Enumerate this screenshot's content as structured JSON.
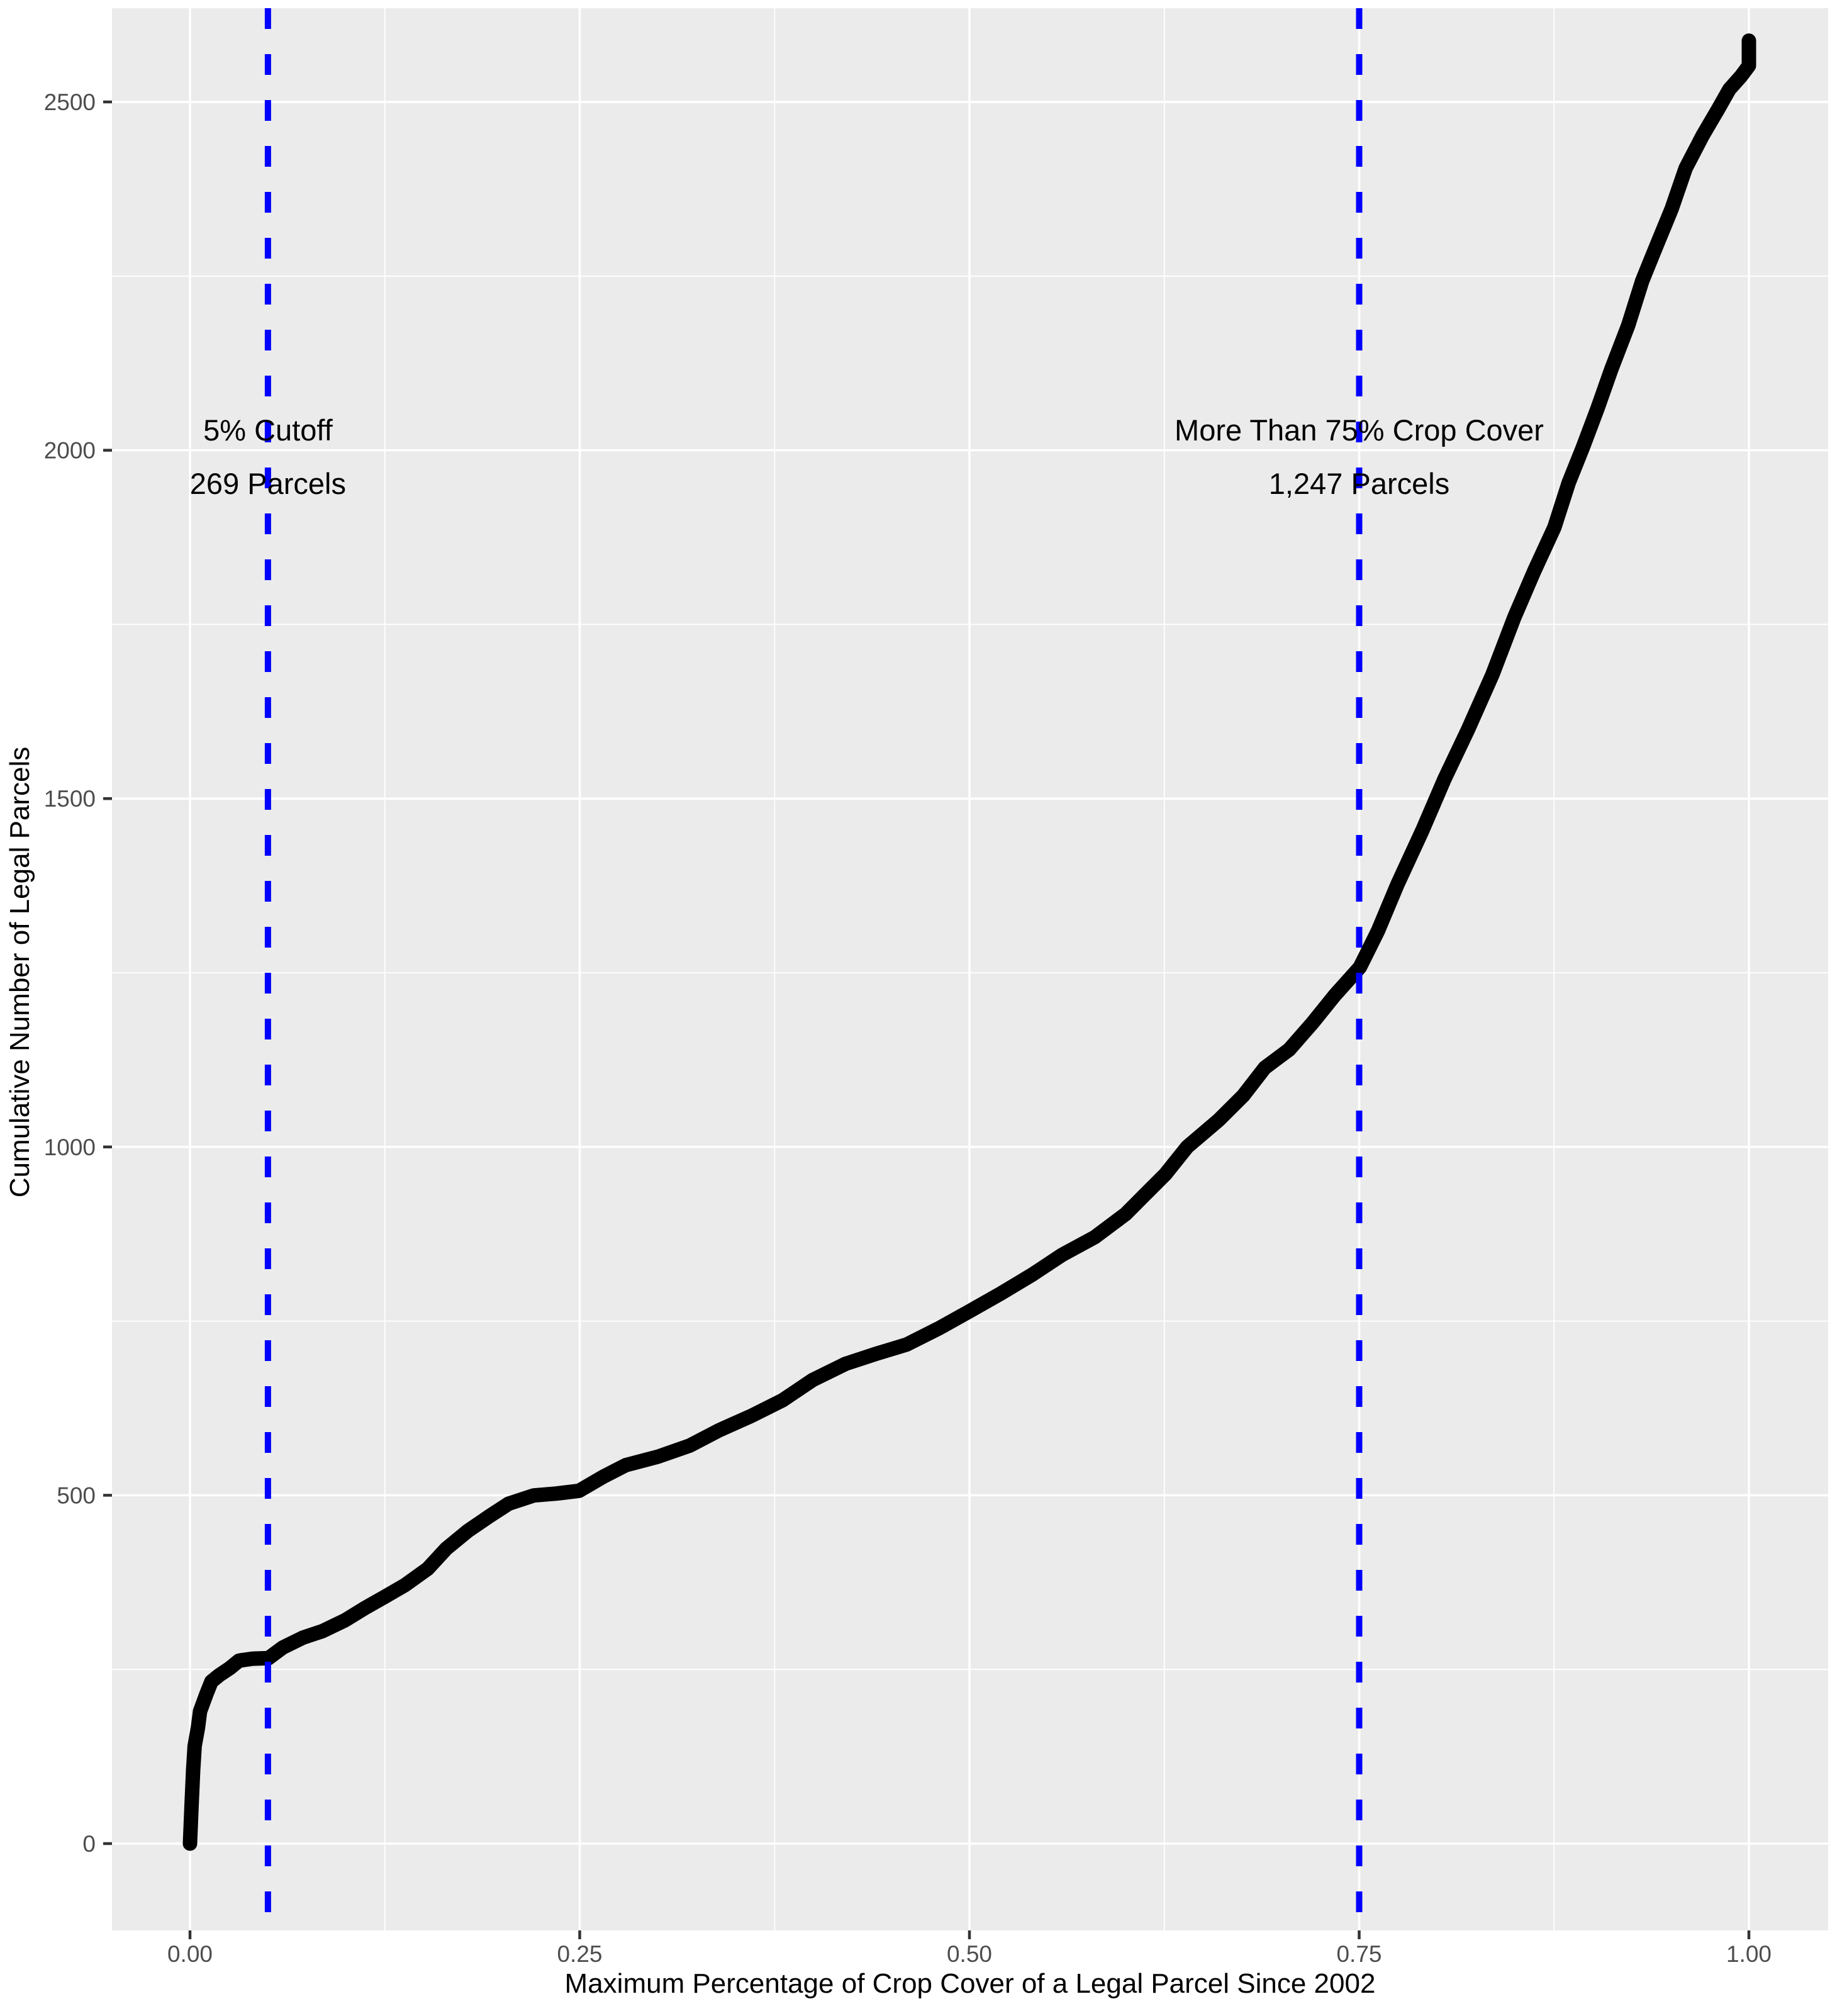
{
  "figure": {
    "x_axis_title": "Maximum Percentage of Crop Cover of a Legal Parcel Since 2002",
    "y_axis_title": "Cumulative Number of Legal Parcels"
  },
  "chart_data": {
    "type": "line",
    "title": "",
    "xlabel": "Maximum Percentage of Crop Cover of a Legal Parcel Since 2002",
    "ylabel": "Cumulative Number of Legal Parcels",
    "x_ticks": [
      "0.00",
      "0.25",
      "0.50",
      "0.75",
      "1.00"
    ],
    "x_tick_values": [
      0,
      0.25,
      0.5,
      0.75,
      1
    ],
    "x_minor_values": [
      0.125,
      0.375,
      0.625,
      0.875
    ],
    "y_ticks": [
      "0",
      "500",
      "1000",
      "1500",
      "2000",
      "2500"
    ],
    "y_tick_values": [
      0,
      500,
      1000,
      1500,
      2000,
      2500
    ],
    "y_minor_values": [
      250,
      750,
      1250,
      1750,
      2250
    ],
    "xlim": [
      -0.05,
      1.05
    ],
    "ylim": [
      -125,
      2635
    ],
    "grid": "major and minor white gridlines on grey panel",
    "legend": false,
    "series": [
      {
        "name": "cumulative-parcels-ecdf",
        "color": "#000000",
        "points": [
          [
            0.0,
            0
          ],
          [
            0.001,
            55
          ],
          [
            0.002,
            105
          ],
          [
            0.003,
            140
          ],
          [
            0.005,
            168
          ],
          [
            0.007,
            192
          ],
          [
            0.01,
            213
          ],
          [
            0.014,
            231
          ],
          [
            0.019,
            244
          ],
          [
            0.025,
            253
          ],
          [
            0.032,
            260
          ],
          [
            0.04,
            265
          ],
          [
            0.05,
            269
          ],
          [
            0.06,
            281
          ],
          [
            0.072,
            293
          ],
          [
            0.085,
            306
          ],
          [
            0.1,
            323
          ],
          [
            0.112,
            337
          ],
          [
            0.125,
            352
          ],
          [
            0.138,
            373
          ],
          [
            0.152,
            396
          ],
          [
            0.165,
            421
          ],
          [
            0.178,
            448
          ],
          [
            0.192,
            473
          ],
          [
            0.205,
            488
          ],
          [
            0.22,
            497
          ],
          [
            0.235,
            503
          ],
          [
            0.25,
            509
          ],
          [
            0.265,
            526
          ],
          [
            0.28,
            541
          ],
          [
            0.3,
            557
          ],
          [
            0.32,
            573
          ],
          [
            0.34,
            591
          ],
          [
            0.36,
            613
          ],
          [
            0.38,
            639
          ],
          [
            0.4,
            666
          ],
          [
            0.42,
            686
          ],
          [
            0.44,
            703
          ],
          [
            0.46,
            719
          ],
          [
            0.48,
            739
          ],
          [
            0.5,
            761
          ],
          [
            0.52,
            791
          ],
          [
            0.54,
            819
          ],
          [
            0.56,
            843
          ],
          [
            0.58,
            869
          ],
          [
            0.6,
            906
          ],
          [
            0.612,
            930
          ],
          [
            0.625,
            958
          ],
          [
            0.64,
            1000
          ],
          [
            0.66,
            1041
          ],
          [
            0.675,
            1073
          ],
          [
            0.69,
            1111
          ],
          [
            0.705,
            1141
          ],
          [
            0.72,
            1181
          ],
          [
            0.735,
            1216
          ],
          [
            0.75,
            1256
          ],
          [
            0.762,
            1312
          ],
          [
            0.775,
            1378
          ],
          [
            0.79,
            1452
          ],
          [
            0.805,
            1527
          ],
          [
            0.82,
            1602
          ],
          [
            0.835,
            1678
          ],
          [
            0.85,
            1757
          ],
          [
            0.862,
            1827
          ],
          [
            0.875,
            1892
          ],
          [
            0.885,
            1952
          ],
          [
            0.893,
            2002
          ],
          [
            0.903,
            2062
          ],
          [
            0.912,
            2117
          ],
          [
            0.922,
            2177
          ],
          [
            0.932,
            2242
          ],
          [
            0.94,
            2292
          ],
          [
            0.95,
            2347
          ],
          [
            0.96,
            2402
          ],
          [
            0.97,
            2452
          ],
          [
            0.98,
            2492
          ],
          [
            0.988,
            2517
          ],
          [
            0.995,
            2537
          ],
          [
            1.0,
            2552
          ],
          [
            1.0,
            2588
          ]
        ]
      }
    ],
    "vlines": [
      {
        "x": 0.05,
        "color": "#0000FF",
        "style": "dashed",
        "label_line1": "5% Cutoff",
        "label_line2": "269 Parcels"
      },
      {
        "x": 0.75,
        "color": "#0000FF",
        "style": "dashed",
        "label_line1": "More Than 75% Crop Cover",
        "label_line2": "1,247 Parcels"
      }
    ]
  },
  "styles": {
    "page_bg": "#FFFFFF",
    "panel_bg": "#EBEBEB",
    "grid_color": "#FFFFFF",
    "curve_color": "#000000",
    "vline_color": "#0000FF",
    "tick_label_color": "#4D4D4D",
    "tick_mark_color": "#333333",
    "axis_title_color": "#000000",
    "annotation_color": "#000000"
  }
}
